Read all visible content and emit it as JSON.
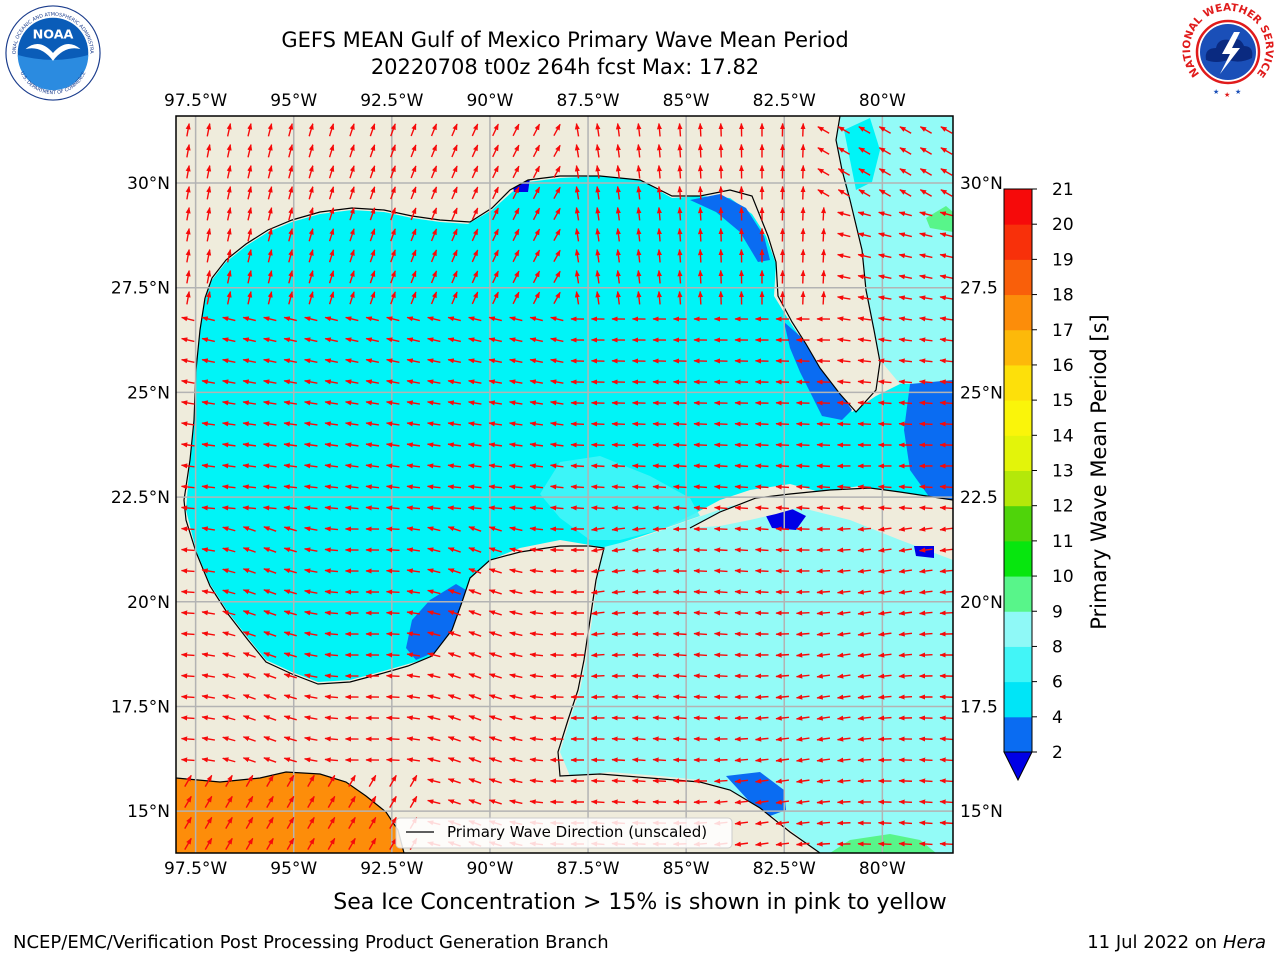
{
  "title": {
    "line1": "GEFS MEAN Gulf of Mexico Primary Wave Mean Period",
    "line2": "20220708 t00z 264h fcst   Max: 17.82"
  },
  "map": {
    "lon_ticks": [
      "97.5°W",
      "95°W",
      "92.5°W",
      "90°W",
      "87.5°W",
      "85°W",
      "82.5°W",
      "80°W"
    ],
    "lat_ticks_left": [
      "30°N",
      "27.5°N",
      "25°N",
      "22.5°N",
      "20°N",
      "17.5°N",
      "15°N"
    ],
    "lat_ticks_right": [
      "30°N",
      "27.5",
      "25°N",
      "22.5",
      "20°N",
      "17.5",
      "15°N"
    ],
    "legend_label": "Primary Wave Direction (unscaled)",
    "extent": {
      "lon_min": -98.0,
      "lon_max": -78.2,
      "lat_min": 14.0,
      "lat_max": 31.6
    }
  },
  "colorbar": {
    "label": "Primary Wave Mean Period [s]",
    "ticks": [
      "2",
      "4",
      "6",
      "8",
      "9",
      "10",
      "11",
      "12",
      "13",
      "14",
      "15",
      "16",
      "17",
      "18",
      "19",
      "20",
      "21"
    ],
    "colors": [
      "#0a6cf2",
      "#00e5f7",
      "#42f5f7",
      "#8ff9f7",
      "#58f58a",
      "#07e60e",
      "#4fd40a",
      "#b4e80a",
      "#e3f40a",
      "#faf50a",
      "#fde00a",
      "#fdb90a",
      "#fc8d0a",
      "#f95f0a",
      "#f8300a",
      "#f60a0a"
    ],
    "under_color": "#0000e6"
  },
  "colors": {
    "land": "#efecdc",
    "sea_cyan": "#00f4f7",
    "sea_light": "#93fbf7",
    "deep_blue": "#0a6cf2",
    "navy": "#0000e6",
    "orange": "#fd8d0a",
    "green": "#58f58a",
    "arrow": "#f60a0a",
    "grid": "#b3b3b3"
  },
  "ice_caption": "Sea Ice Concentration > 15% is shown in pink to yellow",
  "footer": {
    "left": "NCEP/EMC/Verification Post Processing Product Generation Branch",
    "right_prefix": "11 Jul 2022 on ",
    "right_host": "Hera"
  },
  "logos": {
    "noaa": "NOAA",
    "noaa_ring_top": "NATIONAL OCEANIC AND ATMOSPHERIC ADMINISTRATION",
    "noaa_ring_bottom": "U.S. DEPARTMENT OF COMMERCE",
    "nws_ring": "NATIONAL WEATHER SERVICE",
    "noaa_icon": "noaa-seagull-icon",
    "nws_icon": "nws-lightning-cloud-icon"
  }
}
